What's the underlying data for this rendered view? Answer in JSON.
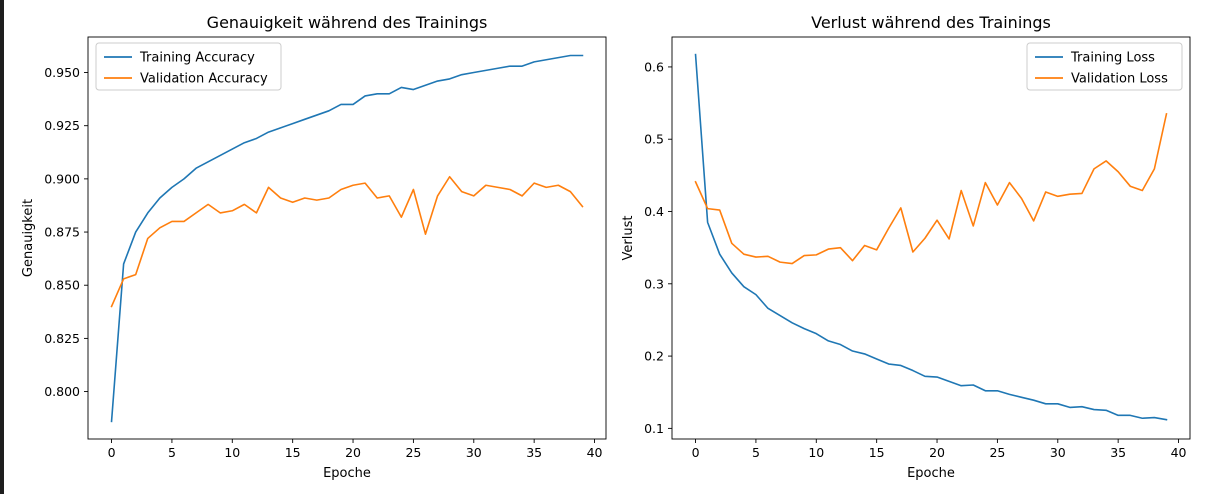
{
  "colors": {
    "training": "#1f77b4",
    "validation": "#ff7f0e",
    "frame": "#000000",
    "legend_border": "#cccccc"
  },
  "chart_data": [
    {
      "type": "line",
      "title": "Genauigkeit während des Trainings",
      "xlabel": "Epoche",
      "ylabel": "Genauigkeit",
      "xlim": [
        -1.95,
        40.95
      ],
      "ylim": [
        0.7777,
        0.9667
      ],
      "xticks": [
        "0",
        "5",
        "10",
        "15",
        "20",
        "25",
        "30",
        "35",
        "40"
      ],
      "yticks": [
        "0.800",
        "0.825",
        "0.850",
        "0.875",
        "0.900",
        "0.925",
        "0.950"
      ],
      "grid": false,
      "legend": "top-left",
      "series": [
        {
          "name": "Training Accuracy",
          "x": [
            0,
            1,
            2,
            3,
            4,
            5,
            6,
            7,
            8,
            9,
            10,
            11,
            12,
            13,
            14,
            15,
            16,
            17,
            18,
            19,
            20,
            21,
            22,
            23,
            24,
            25,
            26,
            27,
            28,
            29,
            30,
            31,
            32,
            33,
            34,
            35,
            36,
            37,
            38,
            39
          ],
          "values": [
            0.786,
            0.86,
            0.875,
            0.884,
            0.891,
            0.896,
            0.9,
            0.905,
            0.908,
            0.911,
            0.914,
            0.917,
            0.919,
            0.922,
            0.924,
            0.926,
            0.928,
            0.93,
            0.932,
            0.935,
            0.935,
            0.939,
            0.94,
            0.94,
            0.943,
            0.942,
            0.944,
            0.946,
            0.947,
            0.949,
            0.95,
            0.951,
            0.952,
            0.953,
            0.953,
            0.955,
            0.956,
            0.957,
            0.958,
            0.958
          ]
        },
        {
          "name": "Validation Accuracy",
          "x": [
            0,
            1,
            2,
            3,
            4,
            5,
            6,
            7,
            8,
            9,
            10,
            11,
            12,
            13,
            14,
            15,
            16,
            17,
            18,
            19,
            20,
            21,
            22,
            23,
            24,
            25,
            26,
            27,
            28,
            29,
            30,
            31,
            32,
            33,
            34,
            35,
            36,
            37,
            38,
            39
          ],
          "values": [
            0.84,
            0.853,
            0.855,
            0.872,
            0.877,
            0.88,
            0.88,
            0.884,
            0.888,
            0.884,
            0.885,
            0.888,
            0.884,
            0.896,
            0.891,
            0.889,
            0.891,
            0.89,
            0.891,
            0.895,
            0.897,
            0.898,
            0.891,
            0.892,
            0.882,
            0.895,
            0.874,
            0.892,
            0.901,
            0.894,
            0.892,
            0.897,
            0.896,
            0.895,
            0.892,
            0.898,
            0.896,
            0.897,
            0.894,
            0.887
          ]
        }
      ]
    },
    {
      "type": "line",
      "title": "Verlust während des Trainings",
      "xlabel": "Epoche",
      "ylabel": "Verlust",
      "xlim": [
        -1.95,
        40.95
      ],
      "ylim": [
        0.0853,
        0.6414
      ],
      "xticks": [
        "0",
        "5",
        "10",
        "15",
        "20",
        "25",
        "30",
        "35",
        "40"
      ],
      "yticks": [
        "0.1",
        "0.2",
        "0.3",
        "0.4",
        "0.5",
        "0.6"
      ],
      "grid": false,
      "legend": "top-right",
      "series": [
        {
          "name": "Training Loss",
          "x": [
            0,
            1,
            2,
            3,
            4,
            5,
            6,
            7,
            8,
            9,
            10,
            11,
            12,
            13,
            14,
            15,
            16,
            17,
            18,
            19,
            20,
            21,
            22,
            23,
            24,
            25,
            26,
            27,
            28,
            29,
            30,
            31,
            32,
            33,
            34,
            35,
            36,
            37,
            38,
            39
          ],
          "values": [
            0.617,
            0.385,
            0.341,
            0.315,
            0.296,
            0.285,
            0.266,
            0.256,
            0.246,
            0.238,
            0.231,
            0.221,
            0.216,
            0.207,
            0.203,
            0.196,
            0.189,
            0.187,
            0.18,
            0.172,
            0.171,
            0.165,
            0.159,
            0.16,
            0.152,
            0.152,
            0.147,
            0.143,
            0.139,
            0.134,
            0.134,
            0.129,
            0.13,
            0.126,
            0.125,
            0.118,
            0.118,
            0.114,
            0.115,
            0.112
          ]
        },
        {
          "name": "Validation Loss",
          "x": [
            0,
            1,
            2,
            3,
            4,
            5,
            6,
            7,
            8,
            9,
            10,
            11,
            12,
            13,
            14,
            15,
            16,
            17,
            18,
            19,
            20,
            21,
            22,
            23,
            24,
            25,
            26,
            27,
            28,
            29,
            30,
            31,
            32,
            33,
            34,
            35,
            36,
            37,
            38,
            39
          ],
          "values": [
            0.441,
            0.404,
            0.402,
            0.356,
            0.341,
            0.337,
            0.338,
            0.33,
            0.328,
            0.339,
            0.34,
            0.348,
            0.35,
            0.332,
            0.353,
            0.347,
            0.377,
            0.405,
            0.344,
            0.363,
            0.388,
            0.362,
            0.429,
            0.38,
            0.44,
            0.409,
            0.44,
            0.418,
            0.387,
            0.427,
            0.421,
            0.424,
            0.425,
            0.459,
            0.47,
            0.455,
            0.435,
            0.429,
            0.459,
            0.535
          ]
        }
      ]
    }
  ]
}
